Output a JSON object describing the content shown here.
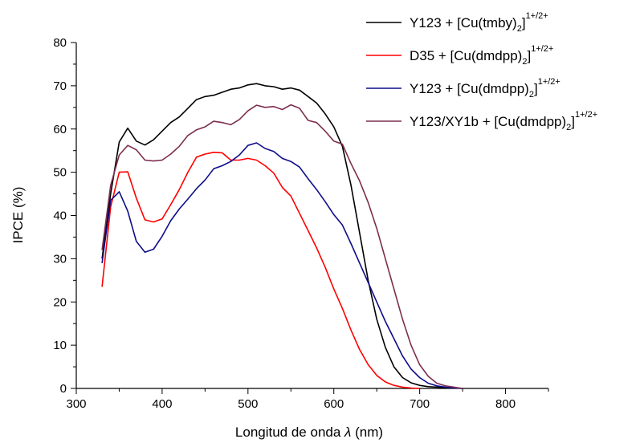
{
  "chart_data": {
    "type": "line",
    "title": "",
    "xlabel_prefix": "Longitud de onda ",
    "xlabel_symbol": "λ",
    "xlabel_suffix": " (nm)",
    "ylabel": "IPCE (%)",
    "xlim": [
      300,
      850
    ],
    "ylim": [
      0,
      80
    ],
    "x_ticks": [
      300,
      400,
      500,
      600,
      700,
      800
    ],
    "y_ticks": [
      0,
      10,
      20,
      30,
      40,
      50,
      60,
      70,
      80
    ],
    "grid": false,
    "legend_position": "top-right",
    "series": [
      {
        "name": "Y123 + [Cu(tmby)2]1+/2+",
        "legend_main": "Y123 + [Cu(tmby)",
        "legend_sub": "2",
        "legend_end": "]",
        "legend_sup": "1+/2+",
        "color": "#000000",
        "points": [
          [
            330,
            30
          ],
          [
            340,
            45
          ],
          [
            350,
            57
          ],
          [
            360,
            60.2
          ],
          [
            370,
            57.2
          ],
          [
            380,
            56.3
          ],
          [
            390,
            57.5
          ],
          [
            400,
            59.5
          ],
          [
            410,
            61.5
          ],
          [
            420,
            62.8
          ],
          [
            430,
            64.8
          ],
          [
            440,
            66.8
          ],
          [
            450,
            67.5
          ],
          [
            460,
            67.8
          ],
          [
            470,
            68.5
          ],
          [
            480,
            69.2
          ],
          [
            490,
            69.5
          ],
          [
            500,
            70.2
          ],
          [
            510,
            70.5
          ],
          [
            520,
            70
          ],
          [
            530,
            69.8
          ],
          [
            540,
            69.2
          ],
          [
            550,
            69.5
          ],
          [
            560,
            69
          ],
          [
            570,
            67.5
          ],
          [
            580,
            66
          ],
          [
            590,
            63.5
          ],
          [
            600,
            60.5
          ],
          [
            610,
            56
          ],
          [
            620,
            47
          ],
          [
            630,
            36
          ],
          [
            640,
            25
          ],
          [
            650,
            16
          ],
          [
            660,
            9.5
          ],
          [
            670,
            5
          ],
          [
            680,
            2.5
          ],
          [
            690,
            1.3
          ],
          [
            700,
            0.7
          ],
          [
            710,
            0.4
          ],
          [
            720,
            0.3
          ],
          [
            730,
            0.2
          ],
          [
            740,
            0.1
          ],
          [
            750,
            0
          ]
        ]
      },
      {
        "name": "D35 + [Cu(dmdpp)2]1+/2+",
        "legend_main": "D35 + [Cu(dmdpp)",
        "legend_sub": "2",
        "legend_end": "]",
        "legend_sup": "1+/2+",
        "color": "#ff0000",
        "points": [
          [
            330,
            23.5
          ],
          [
            340,
            42
          ],
          [
            350,
            50
          ],
          [
            360,
            50.1
          ],
          [
            370,
            44
          ],
          [
            380,
            39
          ],
          [
            390,
            38.5
          ],
          [
            400,
            39.2
          ],
          [
            410,
            42.5
          ],
          [
            420,
            46
          ],
          [
            430,
            50
          ],
          [
            440,
            53.5
          ],
          [
            450,
            54.2
          ],
          [
            460,
            54.6
          ],
          [
            470,
            54.5
          ],
          [
            480,
            52.8
          ],
          [
            490,
            52.8
          ],
          [
            500,
            53.2
          ],
          [
            510,
            52.8
          ],
          [
            520,
            51.5
          ],
          [
            530,
            49.8
          ],
          [
            540,
            46.5
          ],
          [
            550,
            44.5
          ],
          [
            560,
            40.5
          ],
          [
            570,
            36.5
          ],
          [
            580,
            32.5
          ],
          [
            590,
            28
          ],
          [
            600,
            23
          ],
          [
            610,
            18.5
          ],
          [
            620,
            13.5
          ],
          [
            630,
            9
          ],
          [
            640,
            5.5
          ],
          [
            650,
            3
          ],
          [
            660,
            1.5
          ],
          [
            670,
            0.7
          ],
          [
            680,
            0.3
          ],
          [
            690,
            0.1
          ],
          [
            700,
            0
          ]
        ]
      },
      {
        "name": "Y123 + [Cu(dmdpp)2]1+/2+",
        "legend_main": "Y123 + [Cu(dmdpp)",
        "legend_sub": "2",
        "legend_end": "]",
        "legend_sup": "1+/2+",
        "color": "#0d0d8a",
        "points": [
          [
            330,
            29
          ],
          [
            340,
            43.5
          ],
          [
            350,
            45.5
          ],
          [
            360,
            41
          ],
          [
            370,
            34
          ],
          [
            380,
            31.5
          ],
          [
            390,
            32.2
          ],
          [
            400,
            35.2
          ],
          [
            410,
            38.8
          ],
          [
            420,
            41.5
          ],
          [
            430,
            43.8
          ],
          [
            440,
            46.2
          ],
          [
            450,
            48.2
          ],
          [
            460,
            50.8
          ],
          [
            470,
            51.5
          ],
          [
            480,
            52.5
          ],
          [
            490,
            54
          ],
          [
            500,
            56.2
          ],
          [
            510,
            56.8
          ],
          [
            520,
            55.5
          ],
          [
            530,
            54.8
          ],
          [
            540,
            53.2
          ],
          [
            550,
            52.5
          ],
          [
            560,
            51.2
          ],
          [
            570,
            48.5
          ],
          [
            580,
            46
          ],
          [
            590,
            43.2
          ],
          [
            600,
            40.2
          ],
          [
            610,
            37.8
          ],
          [
            620,
            33.5
          ],
          [
            630,
            29
          ],
          [
            640,
            24.5
          ],
          [
            650,
            20
          ],
          [
            660,
            15.5
          ],
          [
            670,
            11.5
          ],
          [
            680,
            7.5
          ],
          [
            690,
            4.5
          ],
          [
            700,
            2.5
          ],
          [
            710,
            1.2
          ],
          [
            720,
            0.6
          ],
          [
            730,
            0.3
          ],
          [
            740,
            0.1
          ],
          [
            750,
            0
          ]
        ]
      },
      {
        "name": "Y123/XY1b + [Cu(dmdpp)2]1+/2+",
        "legend_main": "Y123/XY1b + [Cu(dmdpp)",
        "legend_sub": "2",
        "legend_end": "]",
        "legend_sup": "1+/2+",
        "color": "#7d2e4f",
        "points": [
          [
            330,
            32
          ],
          [
            340,
            47
          ],
          [
            350,
            54
          ],
          [
            360,
            56.2
          ],
          [
            370,
            55.2
          ],
          [
            380,
            52.8
          ],
          [
            390,
            52.6
          ],
          [
            400,
            52.8
          ],
          [
            410,
            54.2
          ],
          [
            420,
            56
          ],
          [
            430,
            58.5
          ],
          [
            440,
            59.8
          ],
          [
            450,
            60.5
          ],
          [
            460,
            61.8
          ],
          [
            470,
            61.5
          ],
          [
            480,
            61
          ],
          [
            490,
            62.2
          ],
          [
            500,
            64.2
          ],
          [
            510,
            65.5
          ],
          [
            520,
            65
          ],
          [
            530,
            65.2
          ],
          [
            540,
            64.5
          ],
          [
            550,
            65.6
          ],
          [
            560,
            64.8
          ],
          [
            570,
            62
          ],
          [
            580,
            61.5
          ],
          [
            590,
            59.5
          ],
          [
            600,
            57.2
          ],
          [
            610,
            56.5
          ],
          [
            620,
            52
          ],
          [
            630,
            48
          ],
          [
            640,
            43
          ],
          [
            650,
            37
          ],
          [
            660,
            30
          ],
          [
            670,
            23
          ],
          [
            680,
            16
          ],
          [
            690,
            10
          ],
          [
            700,
            5.5
          ],
          [
            710,
            2.8
          ],
          [
            720,
            1.2
          ],
          [
            730,
            0.6
          ],
          [
            740,
            0.3
          ],
          [
            750,
            0
          ]
        ]
      }
    ]
  }
}
